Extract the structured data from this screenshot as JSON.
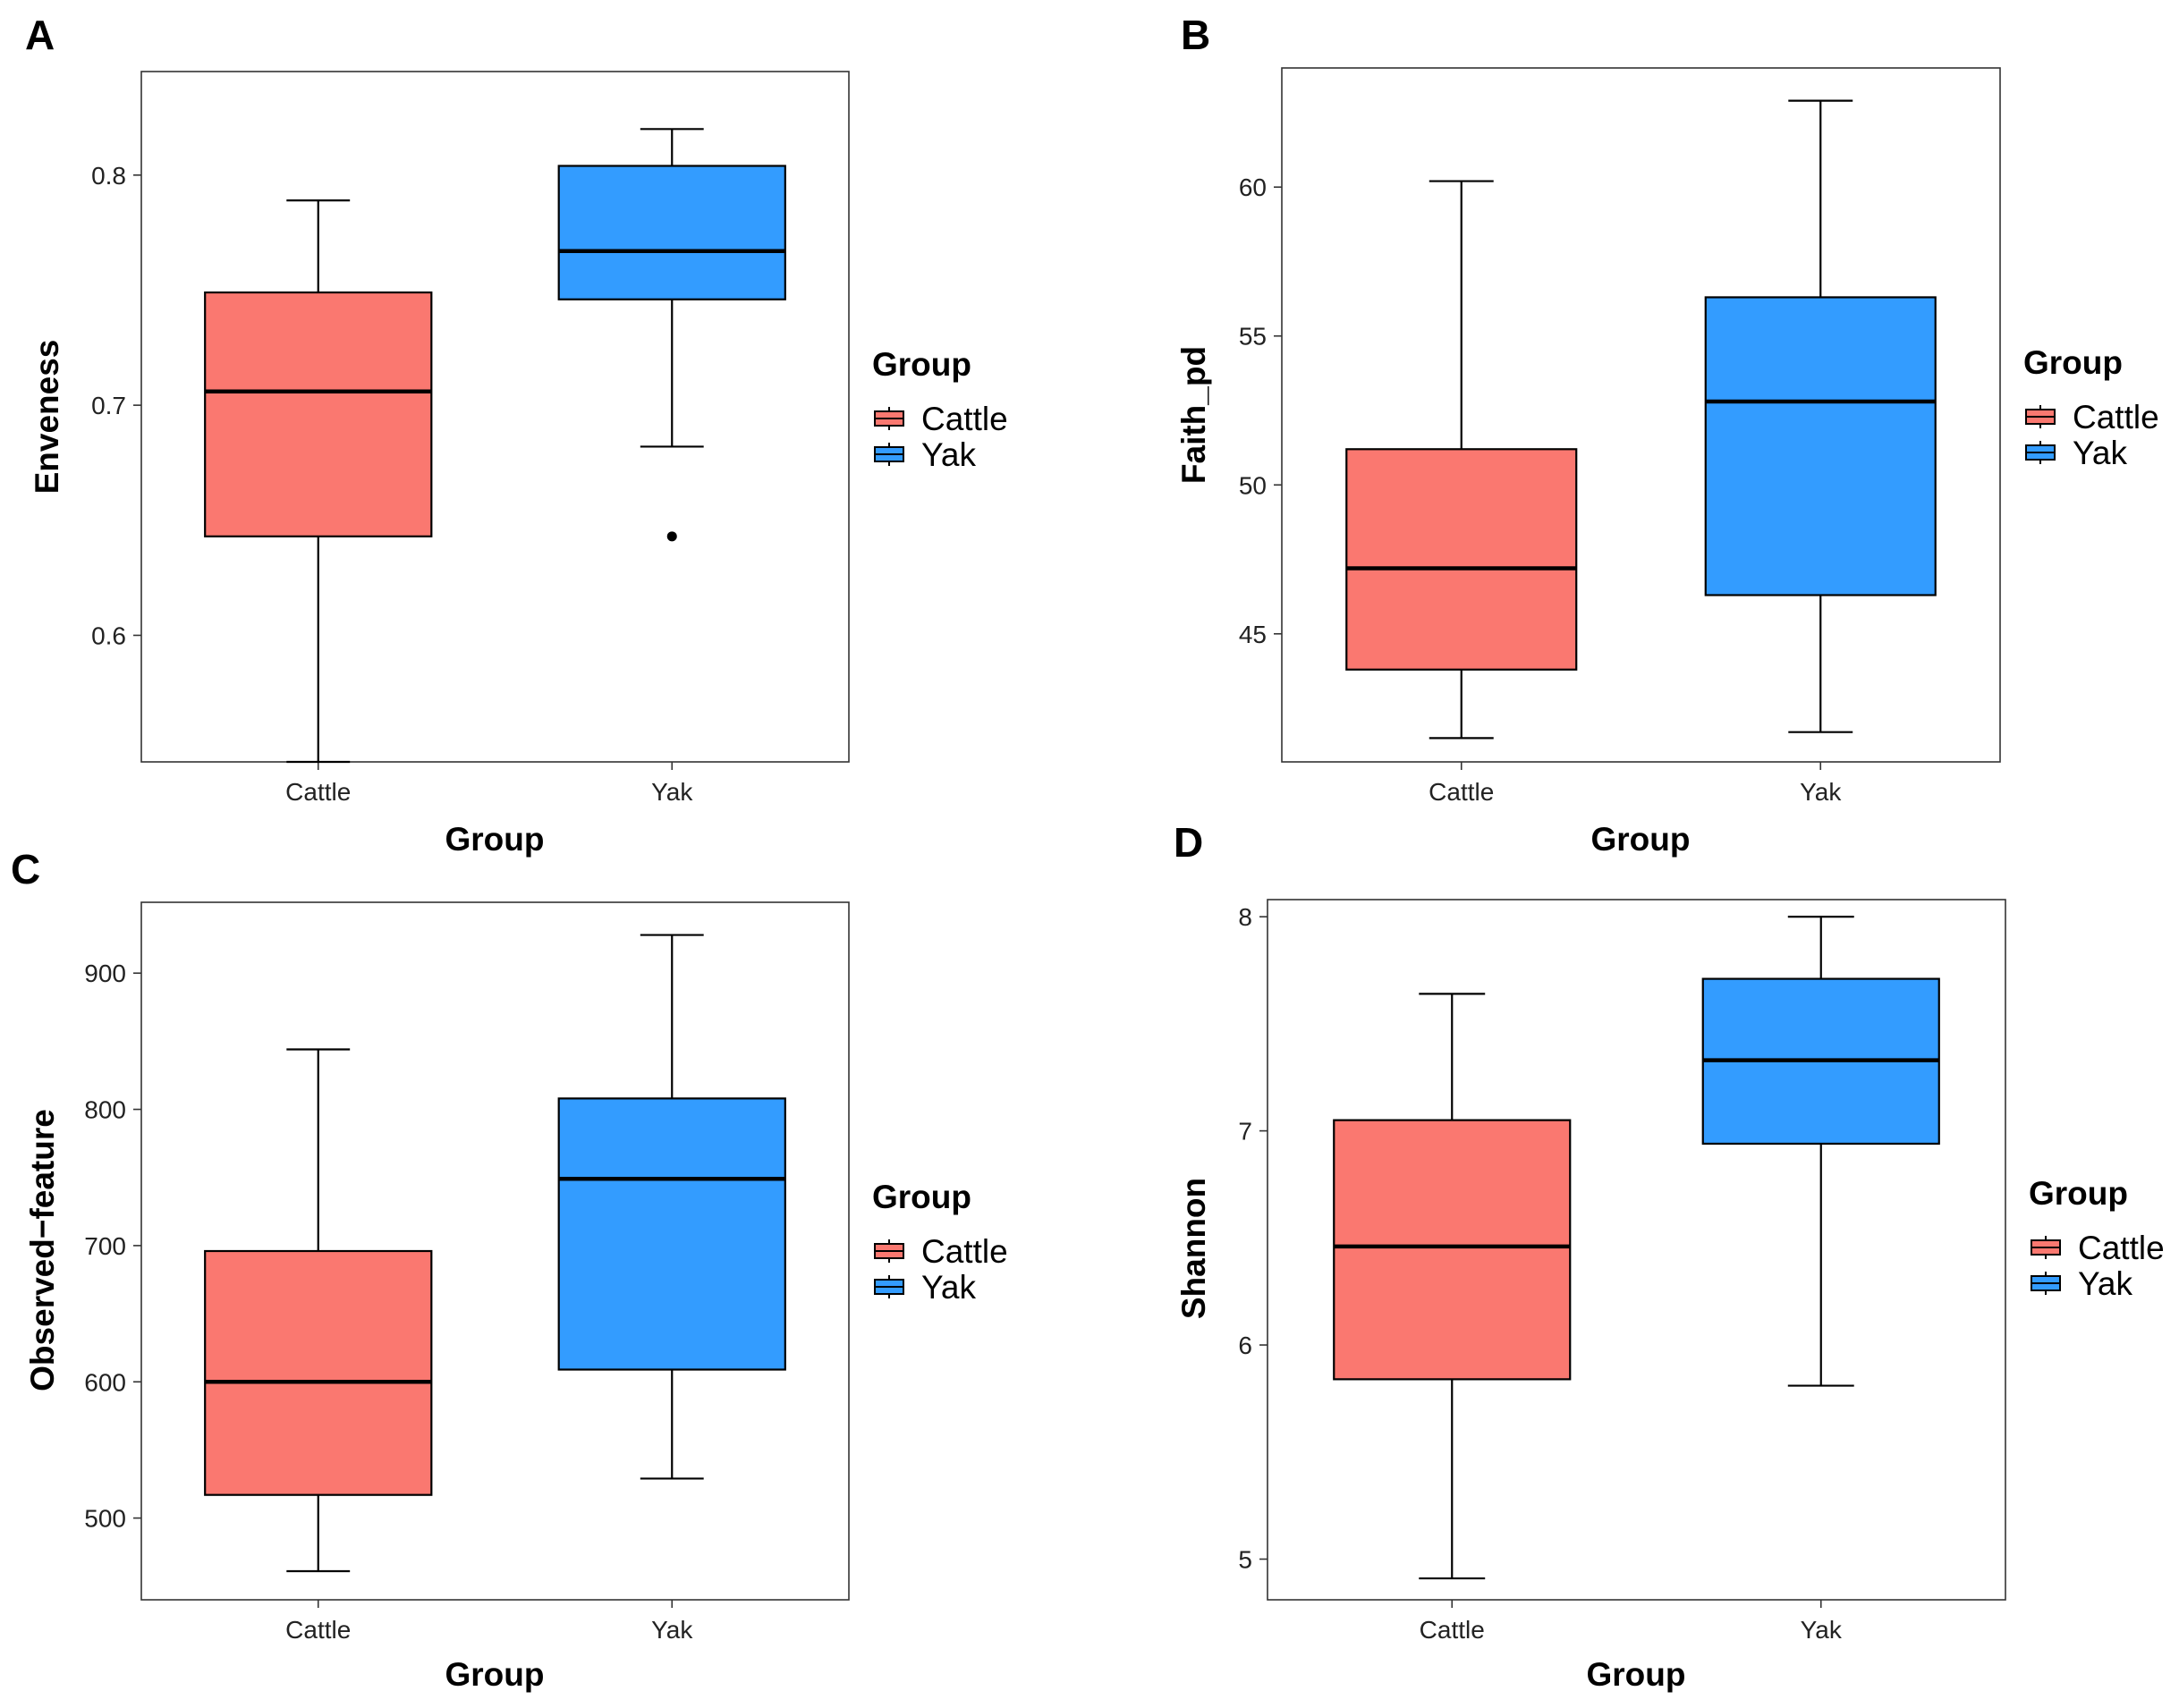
{
  "colors": {
    "cattle": "#fa7870",
    "yak": "#339cff",
    "line": "#000000",
    "frame": "#333333"
  },
  "chart_data": [
    {
      "type": "box",
      "panel_label": "A",
      "ylabel": "Enveness",
      "xlabel": "Group",
      "categories": [
        "Cattle",
        "Yak"
      ],
      "ylim": [
        0.545,
        0.845
      ],
      "yticks": [
        0.6,
        0.7,
        0.8
      ],
      "ytick_labels": [
        "0.6",
        "0.7",
        "0.8"
      ],
      "boxes": [
        {
          "name": "Cattle",
          "min": 0.545,
          "q1": 0.643,
          "median": 0.706,
          "q3": 0.749,
          "max": 0.789,
          "outliers": []
        },
        {
          "name": "Yak",
          "min": 0.682,
          "q1": 0.746,
          "median": 0.767,
          "q3": 0.804,
          "max": 0.82,
          "outliers": [
            0.643
          ]
        }
      ],
      "legend": {
        "title": "Group",
        "entries": [
          "Cattle",
          "Yak"
        ],
        "position": "right"
      }
    },
    {
      "type": "box",
      "panel_label": "B",
      "ylabel": "Faith_pd",
      "xlabel": "Group",
      "categories": [
        "Cattle",
        "Yak"
      ],
      "ylim": [
        40.7,
        64.0
      ],
      "yticks": [
        45,
        50,
        55,
        60
      ],
      "ytick_labels": [
        "45",
        "50",
        "55",
        "60"
      ],
      "boxes": [
        {
          "name": "Cattle",
          "min": 41.5,
          "q1": 43.8,
          "median": 47.2,
          "q3": 51.2,
          "max": 60.2,
          "outliers": []
        },
        {
          "name": "Yak",
          "min": 41.7,
          "q1": 46.3,
          "median": 52.8,
          "q3": 56.3,
          "max": 62.9,
          "outliers": []
        }
      ],
      "legend": {
        "title": "Group",
        "entries": [
          "Cattle",
          "Yak"
        ],
        "position": "right"
      }
    },
    {
      "type": "box",
      "panel_label": "C",
      "ylabel": "Observed−feature",
      "xlabel": "Group",
      "categories": [
        "Cattle",
        "Yak"
      ],
      "ylim": [
        440,
        952
      ],
      "yticks": [
        500,
        600,
        700,
        800,
        900
      ],
      "ytick_labels": [
        "500",
        "600",
        "700",
        "800",
        "900"
      ],
      "boxes": [
        {
          "name": "Cattle",
          "min": 461,
          "q1": 517,
          "median": 600,
          "q3": 696,
          "max": 844,
          "outliers": []
        },
        {
          "name": "Yak",
          "min": 529,
          "q1": 609,
          "median": 749,
          "q3": 808,
          "max": 928,
          "outliers": []
        }
      ],
      "legend": {
        "title": "Group",
        "entries": [
          "Cattle",
          "Yak"
        ],
        "position": "right"
      }
    },
    {
      "type": "box",
      "panel_label": "D",
      "ylabel": "Shannon",
      "xlabel": "Group",
      "categories": [
        "Cattle",
        "Yak"
      ],
      "ylim": [
        4.81,
        8.08
      ],
      "yticks": [
        5,
        6,
        7,
        8
      ],
      "ytick_labels": [
        "5",
        "6",
        "7",
        "8"
      ],
      "boxes": [
        {
          "name": "Cattle",
          "min": 4.91,
          "q1": 5.84,
          "median": 6.46,
          "q3": 7.05,
          "max": 7.64,
          "outliers": []
        },
        {
          "name": "Yak",
          "min": 5.81,
          "q1": 6.94,
          "median": 7.33,
          "q3": 7.71,
          "max": 8.0,
          "outliers": []
        }
      ],
      "legend": {
        "title": "Group",
        "entries": [
          "Cattle",
          "Yak"
        ],
        "position": "right"
      }
    }
  ]
}
